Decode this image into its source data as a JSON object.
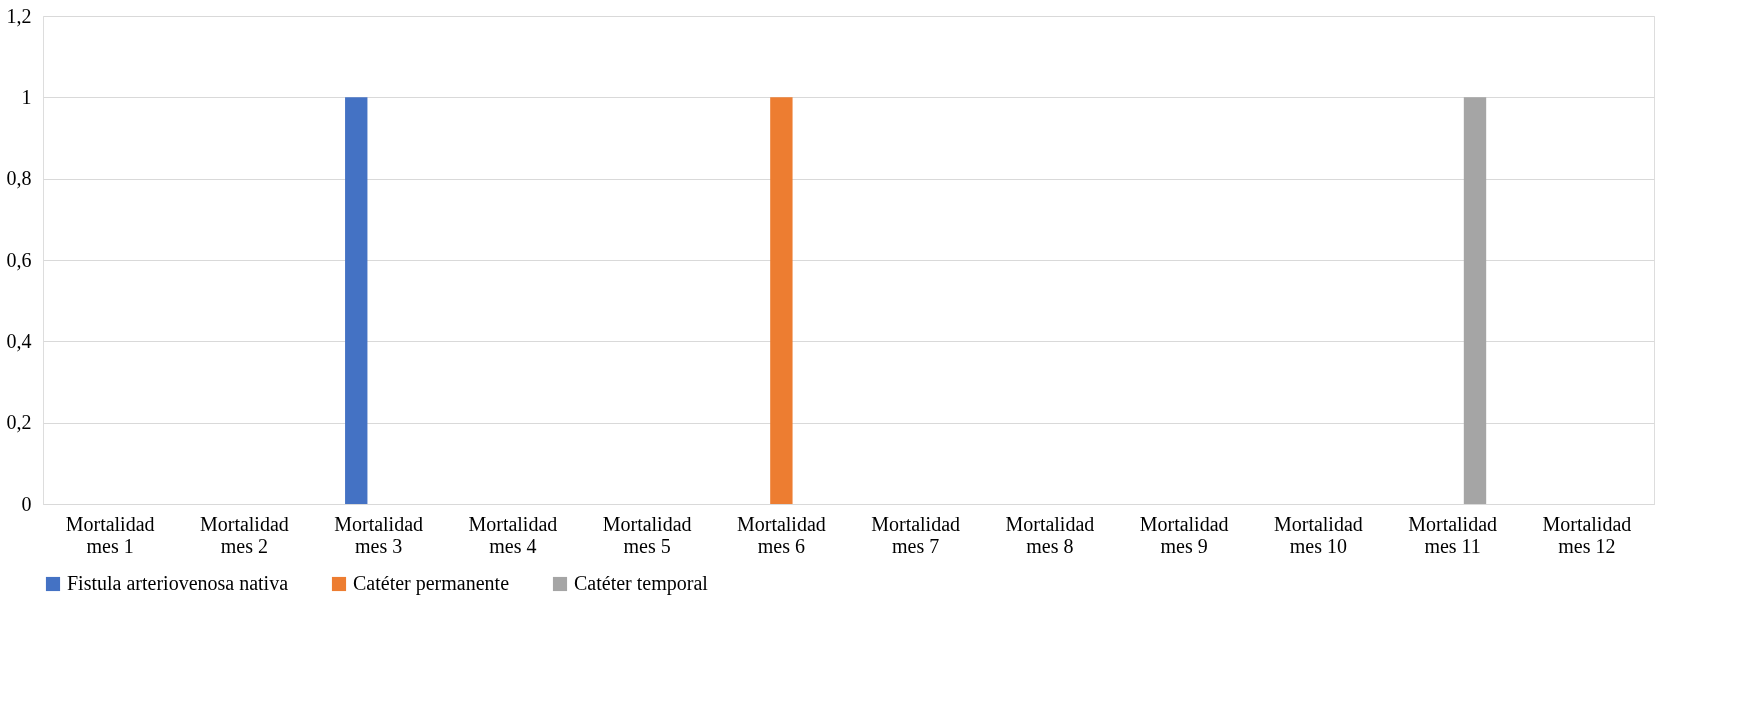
{
  "chart_data": {
    "type": "bar",
    "categories": [
      "Mortalidad mes 1",
      "Mortalidad mes 2",
      "Mortalidad mes 3",
      "Mortalidad mes 4",
      "Mortalidad mes 5",
      "Mortalidad mes 6",
      "Mortalidad mes 7",
      "Mortalidad mes 8",
      "Mortalidad mes 9",
      "Mortalidad mes 10",
      "Mortalidad mes 11",
      "Mortalidad mes 12"
    ],
    "series": [
      {
        "name": "Fistula arteriovenosa nativa",
        "color": "#4472c4",
        "values": [
          0,
          0,
          1,
          0,
          0,
          0,
          0,
          0,
          0,
          0,
          0,
          0
        ]
      },
      {
        "name": "Catéter permanente",
        "color": "#ed7d31",
        "values": [
          0,
          0,
          0,
          0,
          0,
          1,
          0,
          0,
          0,
          0,
          0,
          0
        ]
      },
      {
        "name": "Catéter temporal",
        "color": "#a5a5a5",
        "values": [
          0,
          0,
          0,
          0,
          0,
          0,
          0,
          0,
          0,
          0,
          1,
          0
        ]
      }
    ],
    "ylim": [
      0,
      1.2
    ],
    "yticks": [
      0,
      {
        "value": 0.2,
        "label": "0,2"
      },
      {
        "value": 0.4,
        "label": "0,4"
      },
      {
        "value": 0.6,
        "label": "0,6"
      },
      {
        "value": 0.8,
        "label": "0,8"
      },
      1,
      {
        "value": 1.2,
        "label": "1,2"
      }
    ],
    "grid": "y",
    "legend": "bottom"
  }
}
